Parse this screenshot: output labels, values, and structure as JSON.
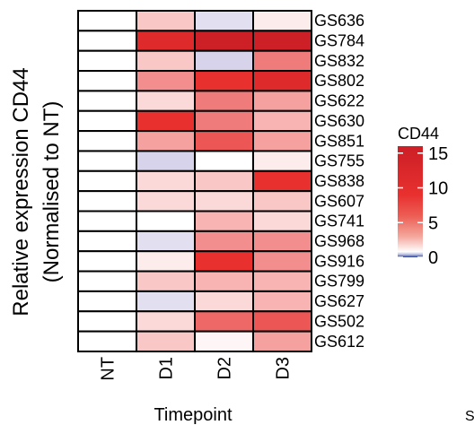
{
  "chart_data": {
    "type": "heatmap",
    "ylabel_lines": [
      "Relative expression CD44",
      "(Normalised to NT)"
    ],
    "xlabel": "Timepoint",
    "columns": [
      "NT",
      "D1",
      "D2",
      "D3"
    ],
    "rows": [
      "GS636",
      "GS784",
      "GS832",
      "GS802",
      "GS622",
      "GS630",
      "GS851",
      "GS755",
      "GS838",
      "GS607",
      "GS741",
      "GS968",
      "GS916",
      "GS799",
      "GS627",
      "GS502",
      "GS612"
    ],
    "values": [
      [
        1,
        4,
        0.5,
        2
      ],
      [
        1,
        13,
        15,
        15
      ],
      [
        1,
        4,
        0.3,
        8
      ],
      [
        1,
        7,
        12,
        13
      ],
      [
        1,
        3,
        8,
        6
      ],
      [
        1,
        12,
        8,
        5
      ],
      [
        1,
        6,
        10,
        6
      ],
      [
        1,
        0.3,
        1,
        2
      ],
      [
        1,
        3,
        4,
        12
      ],
      [
        1,
        3,
        3,
        4
      ],
      [
        1,
        1,
        5,
        3
      ],
      [
        1,
        0.5,
        7,
        7
      ],
      [
        1,
        2,
        12,
        7
      ],
      [
        1,
        4,
        5,
        5
      ],
      [
        1,
        0.5,
        3,
        5
      ],
      [
        1,
        3,
        9,
        10
      ],
      [
        1,
        4,
        1.5,
        6
      ]
    ],
    "legend": {
      "title": "CD44",
      "ticks": [
        15,
        10,
        5,
        0
      ],
      "range": [
        0,
        16
      ],
      "placement": "right"
    },
    "colors": {
      "low": "#2b3f99",
      "white": "#ffffff",
      "red": "#e8302f",
      "high": "#cc1f26"
    }
  },
  "footer_fragment": "S"
}
